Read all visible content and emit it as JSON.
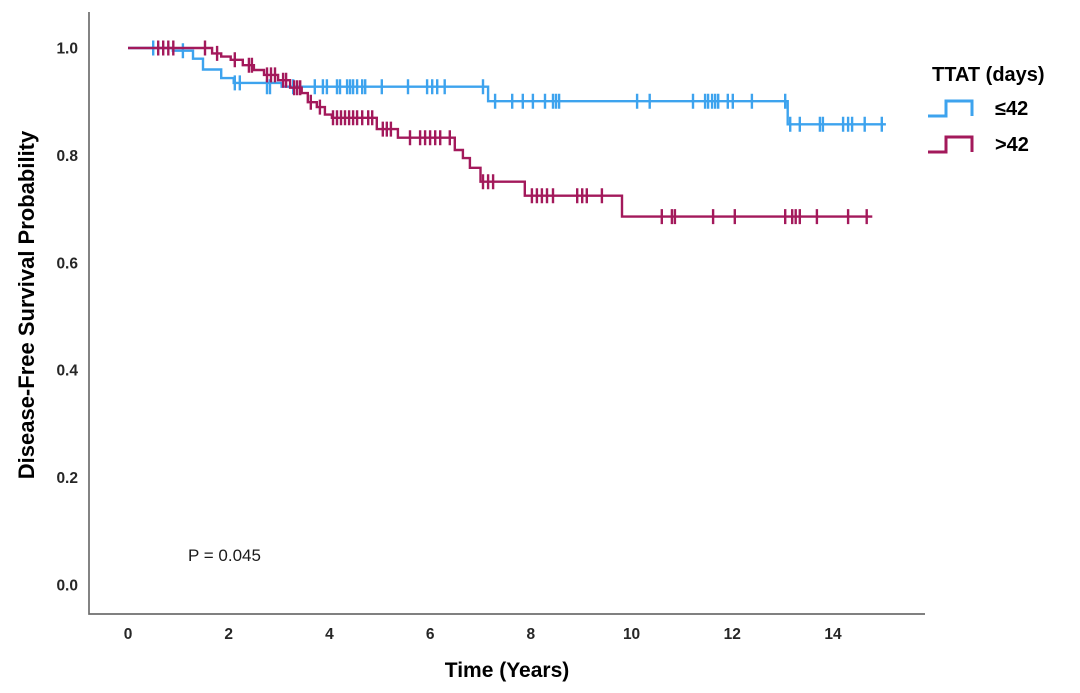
{
  "chart_data": {
    "type": "line",
    "subtype": "kaplan_meier_step",
    "title": "",
    "xlabel": "Time (Years)",
    "ylabel": "Disease-Free Survival Probability",
    "xlim": [
      -0.79,
      15.83
    ],
    "ylim": [
      -0.06,
      1.07
    ],
    "xticks": [
      0,
      2,
      4,
      6,
      8,
      10,
      12,
      14
    ],
    "yticks": [
      1.0,
      0.8,
      0.6,
      0.4,
      0.2,
      0.0
    ],
    "grid": false,
    "axis_color": "#6e6e6e",
    "tick_label_color": "#262626",
    "legend_title": "TTAT (days)",
    "legend_position": "right",
    "annotations": [
      {
        "text": "P = 0.045",
        "x": 1.23,
        "y": 0.054
      }
    ],
    "series": [
      {
        "name": "≤42",
        "color": "#3da3ee",
        "steps": [
          [
            0,
            1.0
          ],
          [
            0.89,
            0.995
          ],
          [
            1.29,
            0.98
          ],
          [
            1.49,
            0.96
          ],
          [
            1.85,
            0.944
          ],
          [
            2.1,
            0.935
          ],
          [
            3.05,
            0.928
          ],
          [
            7.15,
            0.901
          ],
          [
            13.1,
            0.858
          ]
        ],
        "end_time": 15.05,
        "censors": [
          [
            0.5,
            1.0
          ],
          [
            1.09,
            0.995
          ],
          [
            2.12,
            0.935
          ],
          [
            2.22,
            0.935
          ],
          [
            2.76,
            0.928
          ],
          [
            2.82,
            0.928
          ],
          [
            3.28,
            0.928
          ],
          [
            3.71,
            0.928
          ],
          [
            3.87,
            0.928
          ],
          [
            3.95,
            0.928
          ],
          [
            4.15,
            0.928
          ],
          [
            4.21,
            0.928
          ],
          [
            4.35,
            0.928
          ],
          [
            4.41,
            0.928
          ],
          [
            4.47,
            0.928
          ],
          [
            4.55,
            0.928
          ],
          [
            4.65,
            0.928
          ],
          [
            4.71,
            0.928
          ],
          [
            5.04,
            0.928
          ],
          [
            5.56,
            0.928
          ],
          [
            5.94,
            0.928
          ],
          [
            6.04,
            0.928
          ],
          [
            6.14,
            0.928
          ],
          [
            6.29,
            0.928
          ],
          [
            7.05,
            0.928
          ],
          [
            7.29,
            0.901
          ],
          [
            7.63,
            0.901
          ],
          [
            7.84,
            0.901
          ],
          [
            8.04,
            0.901
          ],
          [
            8.28,
            0.901
          ],
          [
            8.44,
            0.901
          ],
          [
            8.5,
            0.901
          ],
          [
            8.56,
            0.901
          ],
          [
            10.11,
            0.901
          ],
          [
            10.36,
            0.901
          ],
          [
            11.22,
            0.901
          ],
          [
            11.46,
            0.901
          ],
          [
            11.52,
            0.901
          ],
          [
            11.6,
            0.901
          ],
          [
            11.66,
            0.901
          ],
          [
            11.72,
            0.901
          ],
          [
            11.91,
            0.901
          ],
          [
            12.01,
            0.901
          ],
          [
            12.39,
            0.901
          ],
          [
            13.05,
            0.901
          ],
          [
            13.15,
            0.858
          ],
          [
            13.34,
            0.858
          ],
          [
            13.74,
            0.858
          ],
          [
            13.8,
            0.858
          ],
          [
            14.2,
            0.858
          ],
          [
            14.3,
            0.858
          ],
          [
            14.38,
            0.858
          ],
          [
            14.63,
            0.858
          ],
          [
            14.97,
            0.858
          ]
        ]
      },
      {
        "name": ">42",
        "color": "#a3195b",
        "steps": [
          [
            0,
            1.0
          ],
          [
            1.67,
            0.99
          ],
          [
            1.85,
            0.984
          ],
          [
            2.04,
            0.978
          ],
          [
            2.28,
            0.968
          ],
          [
            2.5,
            0.959
          ],
          [
            2.7,
            0.95
          ],
          [
            2.98,
            0.94
          ],
          [
            3.22,
            0.926
          ],
          [
            3.45,
            0.916
          ],
          [
            3.57,
            0.899
          ],
          [
            3.75,
            0.89
          ],
          [
            3.91,
            0.876
          ],
          [
            4.05,
            0.87
          ],
          [
            4.94,
            0.849
          ],
          [
            5.36,
            0.833
          ],
          [
            6.49,
            0.81
          ],
          [
            6.65,
            0.795
          ],
          [
            6.79,
            0.777
          ],
          [
            7.0,
            0.751
          ],
          [
            7.88,
            0.725
          ],
          [
            9.81,
            0.686
          ]
        ],
        "end_time": 14.78,
        "censors": [
          [
            0.6,
            1.0
          ],
          [
            0.7,
            1.0
          ],
          [
            0.8,
            1.0
          ],
          [
            0.9,
            1.0
          ],
          [
            1.53,
            1.0
          ],
          [
            1.77,
            0.99
          ],
          [
            2.12,
            0.978
          ],
          [
            2.4,
            0.968
          ],
          [
            2.46,
            0.968
          ],
          [
            2.76,
            0.95
          ],
          [
            2.84,
            0.95
          ],
          [
            2.92,
            0.95
          ],
          [
            3.08,
            0.94
          ],
          [
            3.14,
            0.94
          ],
          [
            3.3,
            0.926
          ],
          [
            3.36,
            0.926
          ],
          [
            3.42,
            0.926
          ],
          [
            3.63,
            0.899
          ],
          [
            3.81,
            0.89
          ],
          [
            4.07,
            0.87
          ],
          [
            4.15,
            0.87
          ],
          [
            4.23,
            0.87
          ],
          [
            4.31,
            0.87
          ],
          [
            4.39,
            0.87
          ],
          [
            4.47,
            0.87
          ],
          [
            4.55,
            0.87
          ],
          [
            4.65,
            0.87
          ],
          [
            4.77,
            0.87
          ],
          [
            4.85,
            0.87
          ],
          [
            5.06,
            0.849
          ],
          [
            5.14,
            0.849
          ],
          [
            5.22,
            0.849
          ],
          [
            5.6,
            0.833
          ],
          [
            5.8,
            0.833
          ],
          [
            5.9,
            0.833
          ],
          [
            6.0,
            0.833
          ],
          [
            6.1,
            0.833
          ],
          [
            6.2,
            0.833
          ],
          [
            6.39,
            0.833
          ],
          [
            7.05,
            0.751
          ],
          [
            7.15,
            0.751
          ],
          [
            7.25,
            0.751
          ],
          [
            8.02,
            0.725
          ],
          [
            8.12,
            0.725
          ],
          [
            8.22,
            0.725
          ],
          [
            8.32,
            0.725
          ],
          [
            8.44,
            0.725
          ],
          [
            8.92,
            0.725
          ],
          [
            9.02,
            0.725
          ],
          [
            9.11,
            0.725
          ],
          [
            9.41,
            0.725
          ],
          [
            10.6,
            0.686
          ],
          [
            10.8,
            0.686
          ],
          [
            10.86,
            0.686
          ],
          [
            11.62,
            0.686
          ],
          [
            12.05,
            0.686
          ],
          [
            13.05,
            0.686
          ],
          [
            13.19,
            0.686
          ],
          [
            13.26,
            0.686
          ],
          [
            13.34,
            0.686
          ],
          [
            13.68,
            0.686
          ],
          [
            14.3,
            0.686
          ],
          [
            14.67,
            0.686
          ]
        ]
      }
    ]
  }
}
